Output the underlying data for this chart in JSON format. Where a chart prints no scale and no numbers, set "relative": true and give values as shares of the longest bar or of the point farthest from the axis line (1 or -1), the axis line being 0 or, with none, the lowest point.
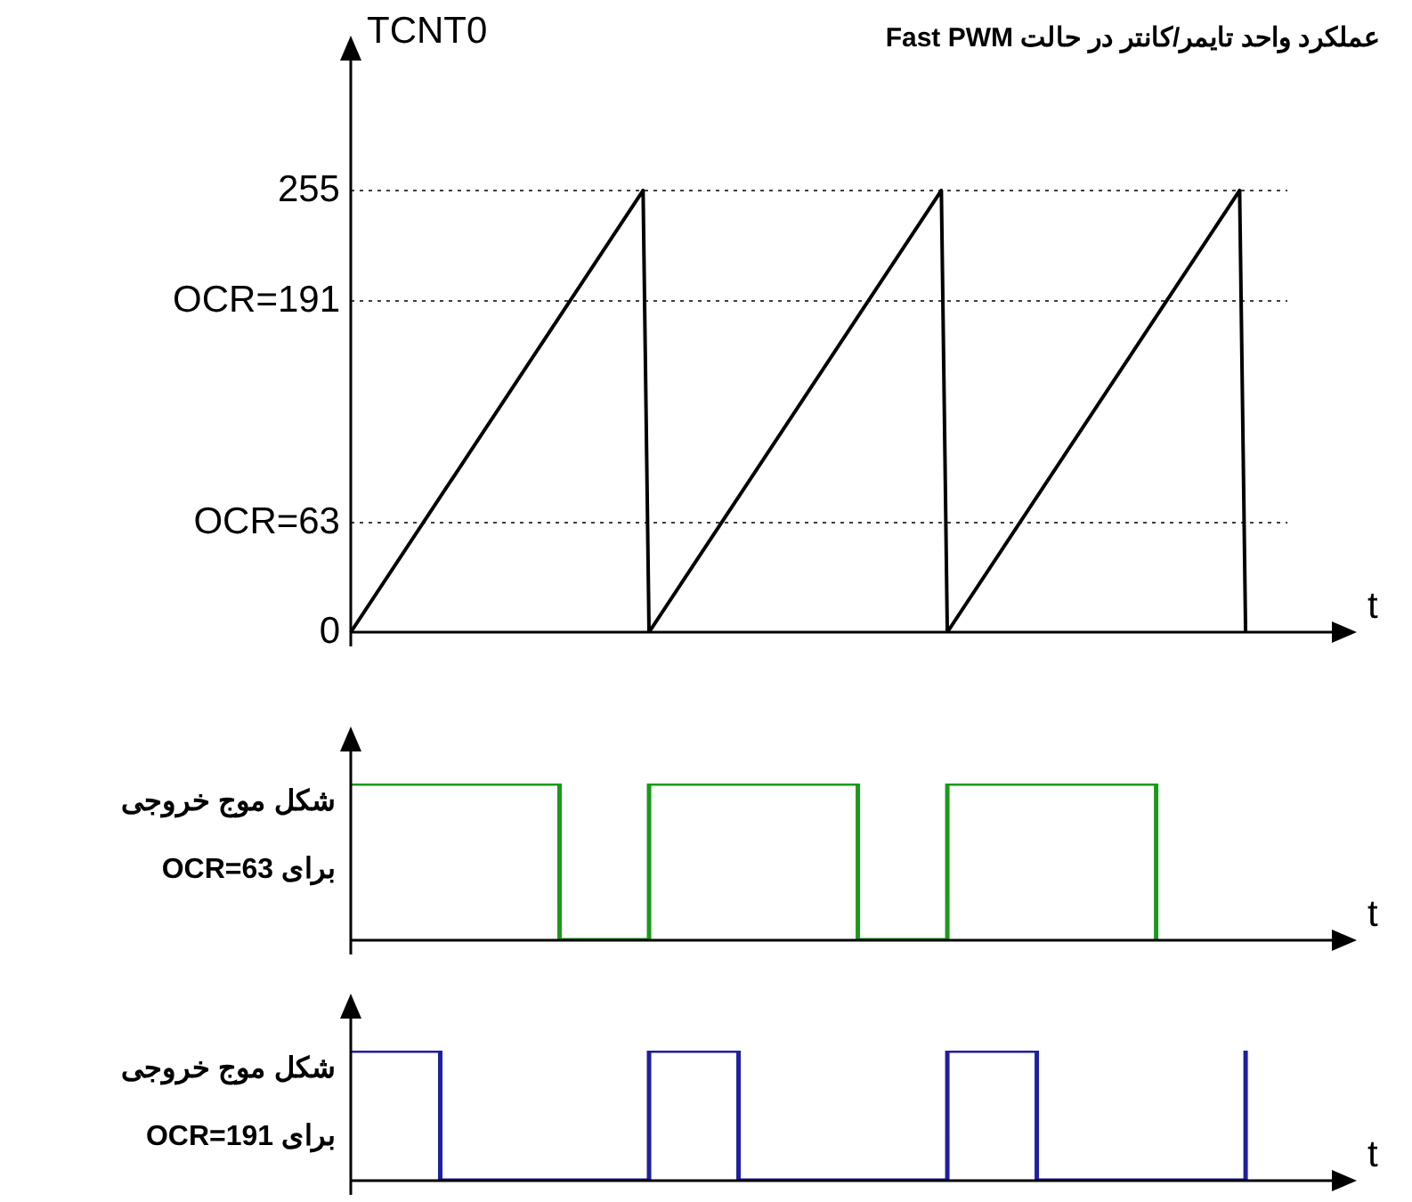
{
  "chart_data": [
    {
      "type": "line",
      "title": "عملکرد واحد تایمر/کانتر در حالت Fast PWM",
      "ylabel": "TCNT0",
      "xlabel": "t",
      "ylim": [
        0,
        330
      ],
      "yticks": [
        0,
        {
          "value": 63,
          "label": "OCR=63"
        },
        {
          "value": 191,
          "label": "OCR=191"
        },
        255
      ],
      "tick_labels": "y",
      "grid": "y",
      "legend": false,
      "categories": [
        null,
        null,
        null,
        null,
        null,
        null,
        null,
        null,
        null,
        null,
        null,
        null,
        null,
        null,
        null,
        null,
        null,
        null,
        null,
        null,
        null,
        null,
        null,
        null,
        null,
        null,
        null,
        null,
        null,
        null,
        null,
        null,
        null,
        null,
        null,
        null,
        null,
        null,
        null,
        null,
        null,
        null,
        null,
        null,
        null,
        null,
        null,
        null,
        null,
        null,
        null,
        null,
        null,
        null,
        null,
        null,
        null,
        null,
        null,
        null,
        null,
        null,
        null,
        null,
        null,
        null,
        null,
        null,
        null,
        null,
        null,
        null,
        null,
        null,
        null,
        null,
        null,
        null,
        null,
        null,
        null,
        null,
        null,
        null,
        null,
        null,
        null,
        null,
        null,
        null,
        null,
        null,
        null,
        null,
        null,
        null,
        null,
        null,
        null,
        null,
        null,
        null,
        null,
        null,
        null,
        null,
        null,
        null,
        null,
        null,
        null,
        null,
        null,
        null,
        null,
        null,
        null,
        null,
        null,
        null,
        null,
        null,
        null,
        null,
        null,
        null,
        null,
        null,
        null,
        null,
        null,
        null,
        null,
        null,
        null,
        null,
        null,
        null,
        null,
        null,
        null,
        null,
        null,
        null,
        null,
        null,
        null,
        null,
        null,
        null,
        null,
        null,
        null,
        null,
        null,
        null,
        null,
        null
      ],
      "series": [
        {
          "color": "#000000",
          "values": [
            0,
            null,
            null,
            null,
            null,
            null,
            null,
            null,
            null,
            null,
            null,
            null,
            null,
            null,
            null,
            null,
            null,
            null,
            null,
            null,
            null,
            null,
            null,
            null,
            null,
            null,
            null,
            null,
            null,
            null,
            null,
            null,
            null,
            null,
            null,
            null,
            null,
            null,
            null,
            null,
            null,
            null,
            null,
            null,
            null,
            null,
            null,
            null,
            null,
            255,
            0,
            null,
            null,
            null,
            null,
            null,
            null,
            null,
            null,
            null,
            null,
            null,
            null,
            null,
            null,
            null,
            null,
            null,
            null,
            null,
            null,
            null,
            null,
            null,
            null,
            null,
            null,
            null,
            null,
            null,
            null,
            null,
            null,
            null,
            null,
            null,
            null,
            null,
            null,
            null,
            null,
            null,
            null,
            null,
            null,
            null,
            null,
            null,
            null,
            255,
            0,
            null,
            null,
            null,
            null,
            null,
            null,
            null,
            null,
            null,
            null,
            null,
            null,
            null,
            null,
            null,
            null,
            null,
            null,
            null,
            null,
            null,
            null,
            null,
            null,
            null,
            null,
            null,
            null,
            null,
            null,
            null,
            null,
            null,
            null,
            null,
            null,
            null,
            null,
            null,
            null,
            null,
            null,
            null,
            null,
            null,
            null,
            null,
            null,
            255,
            0,
            null,
            null,
            null,
            null,
            null,
            null,
            null
          ]
        }
      ]
    },
    {
      "type": "step",
      "relative": true,
      "ylabel": "شکل موج خروجی\nبرای OCR=63",
      "xlabel": "t",
      "tick_labels": false,
      "legend": false,
      "categories": [
        null,
        null,
        null,
        null,
        null,
        null,
        null,
        null,
        null,
        null,
        null,
        null,
        null,
        null,
        null,
        null,
        null,
        null,
        null,
        null,
        null,
        null,
        null,
        null,
        null,
        null,
        null,
        null,
        null,
        null,
        null,
        null,
        null,
        null,
        null,
        null,
        null,
        null,
        null,
        null,
        null,
        null,
        null,
        null,
        null,
        null,
        null,
        null,
        null,
        null,
        null,
        null,
        null,
        null,
        null,
        null,
        null,
        null,
        null,
        null,
        null,
        null,
        null,
        null,
        null,
        null,
        null,
        null,
        null,
        null,
        null,
        null,
        null,
        null,
        null,
        null,
        null,
        null,
        null,
        null,
        null,
        null,
        null,
        null,
        null,
        null,
        null,
        null,
        null,
        null,
        null,
        null,
        null,
        null,
        null,
        null,
        null,
        null,
        null,
        null,
        null,
        null,
        null,
        null,
        null,
        null,
        null,
        null,
        null,
        null,
        null,
        null,
        null,
        null,
        null,
        null,
        null,
        null,
        null,
        null,
        null,
        null,
        null,
        null,
        null,
        null,
        null,
        null,
        null,
        null,
        null,
        null,
        null,
        null,
        null,
        null,
        null,
        null,
        null,
        null,
        null,
        null,
        null,
        null,
        null,
        null,
        null,
        null,
        null,
        null,
        null,
        null,
        null,
        null,
        null,
        null,
        null,
        null
      ],
      "series": [
        {
          "color": "#1a9a1a",
          "values": [
            1,
            null,
            null,
            null,
            null,
            null,
            null,
            null,
            null,
            null,
            null,
            null,
            null,
            null,
            null,
            null,
            null,
            null,
            null,
            null,
            null,
            null,
            null,
            null,
            null,
            null,
            null,
            null,
            null,
            null,
            null,
            null,
            null,
            null,
            null,
            0,
            null,
            null,
            null,
            null,
            null,
            null,
            null,
            null,
            null,
            null,
            null,
            null,
            null,
            null,
            1,
            null,
            null,
            null,
            null,
            null,
            null,
            null,
            null,
            null,
            null,
            null,
            null,
            null,
            null,
            null,
            null,
            null,
            null,
            null,
            null,
            null,
            null,
            null,
            null,
            null,
            null,
            null,
            null,
            null,
            null,
            null,
            null,
            null,
            null,
            0,
            null,
            null,
            null,
            null,
            null,
            null,
            null,
            null,
            null,
            null,
            null,
            null,
            null,
            null,
            1,
            null,
            null,
            null,
            null,
            null,
            null,
            null,
            null,
            null,
            null,
            null,
            null,
            null,
            null,
            null,
            null,
            null,
            null,
            null,
            null,
            null,
            null,
            null,
            null,
            null,
            null,
            null,
            null,
            null,
            null,
            null,
            null,
            null,
            null,
            0,
            null,
            null,
            null,
            null,
            null,
            null,
            null,
            null,
            null,
            null,
            null,
            null,
            null,
            null,
            null,
            null,
            null,
            null,
            null,
            null,
            null,
            null
          ]
        }
      ]
    },
    {
      "type": "step",
      "relative": true,
      "ylabel": "شکل موج خروجی\nبرای OCR=191",
      "xlabel": "t",
      "tick_labels": false,
      "legend": false,
      "categories": [
        null,
        null,
        null,
        null,
        null,
        null,
        null,
        null,
        null,
        null,
        null,
        null,
        null,
        null,
        null,
        null,
        null,
        null,
        null,
        null,
        null,
        null,
        null,
        null,
        null,
        null,
        null,
        null,
        null,
        null,
        null,
        null,
        null,
        null,
        null,
        null,
        null,
        null,
        null,
        null,
        null,
        null,
        null,
        null,
        null,
        null,
        null,
        null,
        null,
        null,
        null,
        null,
        null,
        null,
        null,
        null,
        null,
        null,
        null,
        null,
        null,
        null,
        null,
        null,
        null,
        null,
        null,
        null,
        null,
        null,
        null,
        null,
        null,
        null,
        null,
        null,
        null,
        null,
        null,
        null,
        null,
        null,
        null,
        null,
        null,
        null,
        null,
        null,
        null,
        null,
        null,
        null,
        null,
        null,
        null,
        null,
        null,
        null,
        null,
        null,
        null,
        null,
        null,
        null,
        null,
        null,
        null,
        null,
        null,
        null,
        null,
        null,
        null,
        null,
        null,
        null,
        null,
        null,
        null,
        null,
        null,
        null,
        null,
        null,
        null,
        null,
        null,
        null,
        null,
        null,
        null,
        null,
        null,
        null,
        null,
        null,
        null,
        null,
        null,
        null,
        null,
        null,
        null,
        null,
        null,
        null,
        null,
        null,
        null,
        null,
        null,
        null,
        null,
        null,
        null,
        null,
        null,
        null
      ],
      "series": [
        {
          "color": "#1f1f9f",
          "values": [
            1,
            null,
            null,
            null,
            null,
            null,
            null,
            null,
            null,
            null,
            null,
            null,
            null,
            null,
            null,
            0,
            null,
            null,
            null,
            null,
            null,
            null,
            null,
            null,
            null,
            null,
            null,
            null,
            null,
            null,
            null,
            null,
            null,
            null,
            null,
            null,
            null,
            null,
            null,
            null,
            null,
            null,
            null,
            null,
            null,
            null,
            null,
            null,
            null,
            null,
            1,
            null,
            null,
            null,
            null,
            null,
            null,
            null,
            null,
            null,
            null,
            null,
            null,
            null,
            null,
            0,
            null,
            null,
            null,
            null,
            null,
            null,
            null,
            null,
            null,
            null,
            null,
            null,
            null,
            null,
            null,
            null,
            null,
            null,
            null,
            null,
            null,
            null,
            null,
            null,
            null,
            null,
            null,
            null,
            null,
            null,
            null,
            null,
            null,
            null,
            1,
            null,
            null,
            null,
            null,
            null,
            null,
            null,
            null,
            null,
            null,
            null,
            null,
            null,
            null,
            0,
            null,
            null,
            null,
            null,
            null,
            null,
            null,
            null,
            null,
            null,
            null,
            null,
            null,
            null,
            null,
            null,
            null,
            null,
            null,
            null,
            null,
            null,
            null,
            null,
            null,
            null,
            null,
            null,
            null,
            null,
            null,
            null,
            null,
            null,
            1,
            null,
            null,
            null,
            null,
            null,
            null,
            null
          ]
        }
      ]
    }
  ]
}
